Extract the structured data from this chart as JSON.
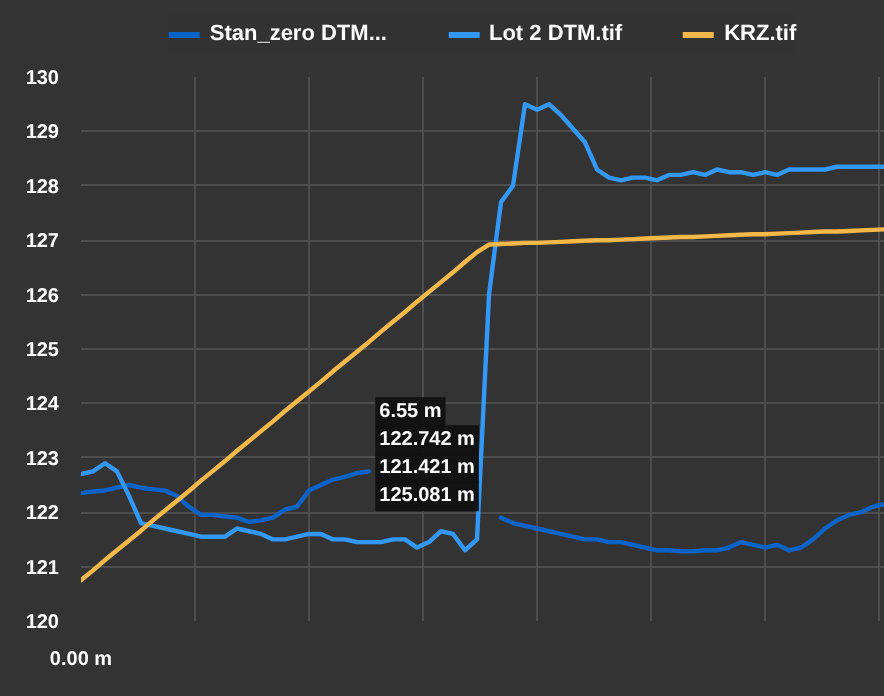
{
  "chart_data": {
    "type": "line",
    "categories": [
      "0.00 m",
      null,
      null,
      null,
      null,
      null,
      null,
      null,
      null,
      null,
      null,
      null,
      null,
      null,
      null,
      null,
      null,
      null,
      null,
      null,
      null,
      null,
      null,
      null,
      null,
      null,
      null,
      null,
      null,
      null,
      null,
      null,
      null,
      null,
      null,
      null,
      null,
      null,
      null,
      null,
      null,
      null,
      null,
      null,
      null,
      null,
      null,
      null,
      null,
      null,
      null,
      null,
      null,
      null,
      null,
      null,
      null,
      null,
      null,
      null,
      null,
      null,
      null,
      null,
      null,
      null,
      null,
      null
    ],
    "series": [
      {
        "name": "Stan_zero DTM...",
        "color": "#0a64c8",
        "values": [
          122.35,
          122.38,
          122.4,
          122.45,
          122.5,
          122.45,
          122.42,
          122.4,
          122.3,
          122.1,
          121.95,
          121.95,
          121.92,
          121.9,
          121.82,
          121.85,
          121.9,
          122.05,
          122.1,
          122.4,
          122.5,
          122.6,
          122.65,
          122.72,
          122.75,
          null,
          null,
          null,
          null,
          null,
          null,
          null,
          null,
          null,
          null,
          121.9,
          121.8,
          121.75,
          121.7,
          121.65,
          121.6,
          121.55,
          121.5,
          121.5,
          121.45,
          121.45,
          121.4,
          121.35,
          121.3,
          121.3,
          121.28,
          121.28,
          121.3,
          121.3,
          121.35,
          121.45,
          121.4,
          121.35,
          121.4,
          121.3,
          121.35,
          121.5,
          121.7,
          121.85,
          121.95,
          122.0,
          122.1,
          122.15
        ]
      },
      {
        "name": "Lot 2 DTM.tif",
        "color": "#3398f5",
        "values": [
          122.7,
          122.75,
          122.9,
          122.75,
          122.3,
          121.8,
          121.75,
          121.7,
          121.65,
          121.6,
          121.55,
          121.55,
          121.55,
          121.7,
          121.65,
          121.6,
          121.5,
          121.5,
          121.55,
          121.6,
          121.6,
          121.5,
          121.5,
          121.45,
          121.45,
          121.45,
          121.5,
          121.5,
          121.35,
          121.45,
          121.65,
          121.6,
          121.3,
          121.5,
          126.0,
          127.7,
          128.0,
          129.5,
          129.4,
          129.5,
          129.3,
          129.05,
          128.8,
          128.3,
          128.15,
          128.1,
          128.15,
          128.15,
          128.1,
          128.2,
          128.2,
          128.25,
          128.2,
          128.3,
          128.25,
          128.25,
          128.2,
          128.25,
          128.2,
          128.3,
          128.3,
          128.3,
          128.3,
          128.35,
          128.35,
          128.35,
          128.35,
          128.35
        ]
      },
      {
        "name": "KRZ.tif",
        "color": "#f7b84a",
        "values": [
          120.75,
          120.93,
          121.12,
          121.3,
          121.48,
          121.66,
          121.85,
          122.03,
          122.21,
          122.39,
          122.58,
          122.76,
          122.94,
          123.13,
          123.31,
          123.49,
          123.67,
          123.86,
          124.04,
          124.22,
          124.4,
          124.59,
          124.77,
          124.95,
          125.13,
          125.32,
          125.5,
          125.68,
          125.87,
          126.05,
          126.23,
          126.41,
          126.6,
          126.78,
          126.92,
          126.93,
          126.94,
          126.95,
          126.95,
          126.96,
          126.97,
          126.98,
          126.99,
          127.0,
          127.0,
          127.01,
          127.02,
          127.03,
          127.04,
          127.05,
          127.06,
          127.06,
          127.07,
          127.08,
          127.09,
          127.1,
          127.11,
          127.11,
          127.12,
          127.13,
          127.14,
          127.15,
          127.16,
          127.16,
          127.17,
          127.18,
          127.19,
          127.2
        ]
      }
    ],
    "ylim": [
      120,
      130
    ],
    "yticks": [
      120,
      121,
      122,
      123,
      124,
      125,
      126,
      127,
      128,
      129,
      130
    ],
    "grid": true,
    "legend": "top",
    "annotations": [
      "6.55 m",
      "122.742 m",
      "121.421 m",
      "125.081 m"
    ]
  }
}
